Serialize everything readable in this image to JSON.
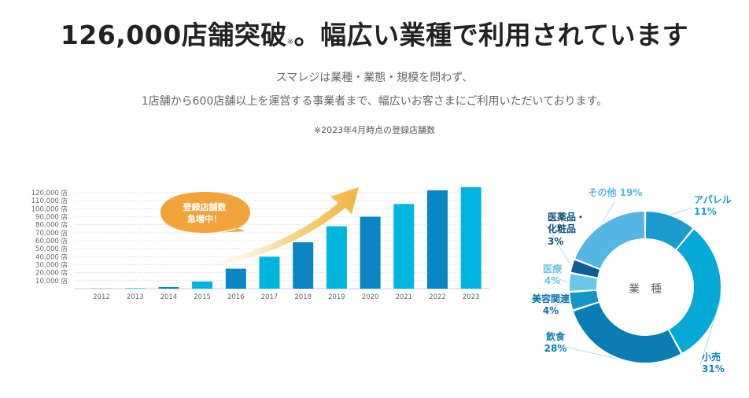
{
  "headline": {
    "main": "126,000店舗突破",
    "note": "※",
    "rest": "。幅広い業種で利用されています"
  },
  "description": {
    "line1": "スマレジは業種・業態・規模を問わず、",
    "line2": "1店舗から600店舗以上を運営する事業者まで、幅広いお客さまにご利用いただいております。"
  },
  "date_note": "※2023年4月時点の登録店舗数",
  "badge": {
    "line1": "登録店舗数",
    "line2": "急増中！"
  },
  "colors": {
    "bar_dark": "#0a86c4",
    "bar_light": "#00b4e0",
    "arrow": "#f0b43c",
    "badge": "#f2a33a"
  },
  "chart_data": [
    {
      "type": "bar",
      "categories": [
        "2012",
        "2013",
        "2014",
        "2015",
        "2016",
        "2017",
        "2018",
        "2019",
        "2020",
        "2021",
        "2022",
        "2023"
      ],
      "values": [
        200,
        600,
        2000,
        9000,
        25000,
        40000,
        58000,
        78000,
        90000,
        106000,
        123000,
        127000
      ],
      "y_ticks": [
        "10,000 店",
        "20,000 店",
        "30,000 店",
        "40,000 店",
        "50,000 店",
        "60,000 店",
        "70,000 店",
        "80,000 店",
        "90,000 店",
        "100,000 店",
        "110,000 店",
        "120,000 店"
      ],
      "ylim": [
        0,
        125000
      ],
      "grid": true
    },
    {
      "type": "pie",
      "center_label": "業　種",
      "slices": [
        {
          "label": "アパレル",
          "value": 11,
          "pct": "%",
          "color": "#1a9bcd"
        },
        {
          "label": "小売",
          "value": 31,
          "pct": "%",
          "color": "#05a9d6"
        },
        {
          "label": "飲食",
          "value": 28,
          "pct": "%",
          "color": "#0a7db5"
        },
        {
          "label": "美容関連",
          "value": 4,
          "pct": "%",
          "color": "#1496c8"
        },
        {
          "label": "医療",
          "value": 4,
          "pct": "%",
          "color": "#6cc7e6"
        },
        {
          "label": "医薬品・化粧品",
          "value": 3,
          "pct": "%",
          "color": "#0b5f93"
        },
        {
          "label": "その他",
          "value": 19,
          "pct": "%",
          "color": "#55b6e2"
        }
      ]
    }
  ]
}
